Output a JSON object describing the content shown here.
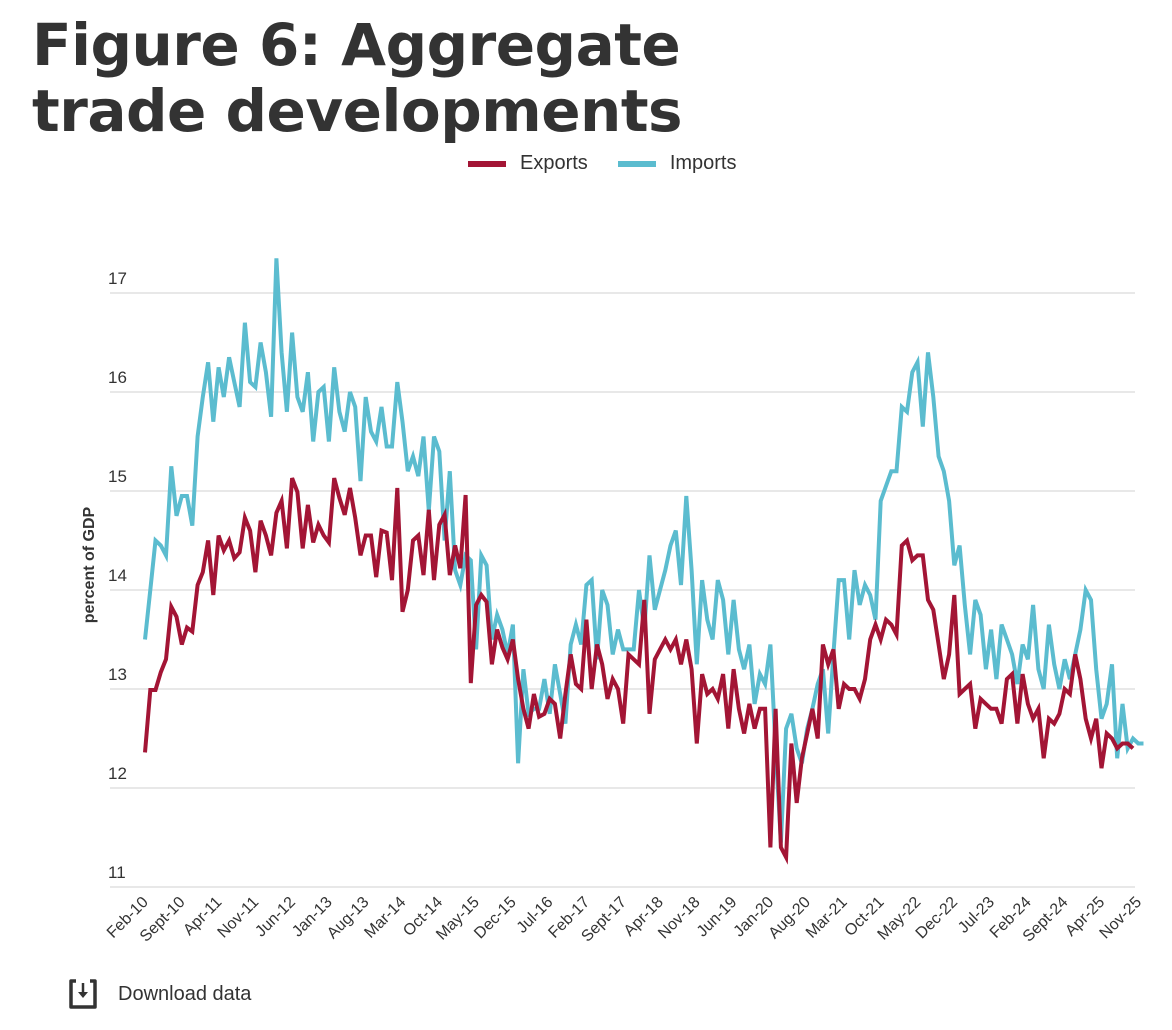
{
  "title": "Figure 6: Aggregate trade developments",
  "download": {
    "label": "Download data",
    "icon": "download-icon"
  },
  "colors": {
    "exports": "#a31535",
    "imports": "#5bbccf",
    "grid": "#e8e8e8",
    "text": "#333333"
  },
  "chart_data": {
    "type": "line",
    "title": "Figure 6: Aggregate trade developments",
    "xlabel": "",
    "ylabel": "percent of GDP",
    "ylim": [
      11,
      17
    ],
    "yticks": [
      11,
      12,
      13,
      14,
      15,
      16,
      17
    ],
    "grid": true,
    "legend_position": "top-center",
    "x_start": "Feb-10",
    "x_end": "Nov-25",
    "frequency": "monthly",
    "xtick_labels": [
      "Feb-10",
      "Sept-10",
      "Apr-11",
      "Nov-11",
      "Jun-12",
      "Jan-13",
      "Aug-13",
      "Mar-14",
      "Oct-14",
      "May-15",
      "Dec-15",
      "Jul-16",
      "Feb-17",
      "Sept-17",
      "Apr-18",
      "Nov-18",
      "Jun-19",
      "Jan-20",
      "Aug-20",
      "Mar-21",
      "Oct-21",
      "May-22",
      "Dec-22",
      "Jul-23",
      "Feb-24",
      "Sept-24",
      "Apr-25",
      "Nov-25"
    ],
    "xtick_step_months": 7,
    "series": [
      {
        "name": "Exports",
        "values": [
          12.36,
          12.99,
          12.99,
          13.17,
          13.3,
          13.83,
          13.73,
          13.45,
          13.62,
          13.58,
          14.05,
          14.18,
          14.5,
          13.95,
          14.55,
          14.4,
          14.5,
          14.32,
          14.38,
          14.73,
          14.6,
          14.18,
          14.7,
          14.55,
          14.35,
          14.78,
          14.9,
          14.42,
          15.13,
          14.99,
          14.42,
          14.86,
          14.48,
          14.66,
          14.55,
          14.48,
          15.13,
          14.93,
          14.76,
          15.03,
          14.73,
          14.35,
          14.55,
          14.55,
          14.13,
          14.6,
          14.58,
          14.1,
          15.03,
          13.78,
          14.0,
          14.5,
          14.55,
          14.15,
          14.81,
          14.1,
          14.66,
          14.76,
          14.15,
          14.45,
          14.22,
          14.96,
          13.06,
          13.85,
          13.95,
          13.88,
          13.25,
          13.6,
          13.42,
          13.3,
          13.5,
          13.1,
          12.8,
          12.6,
          12.95,
          12.72,
          12.75,
          12.9,
          12.85,
          12.5,
          12.95,
          13.35,
          13.05,
          13.0,
          13.7,
          13.0,
          13.45,
          13.25,
          12.9,
          13.1,
          13.0,
          12.65,
          13.35,
          13.3,
          13.25,
          13.9,
          12.75,
          13.3,
          13.4,
          13.5,
          13.4,
          13.5,
          13.25,
          13.5,
          13.2,
          12.45,
          13.15,
          12.95,
          13.0,
          12.9,
          13.15,
          12.6,
          13.2,
          12.8,
          12.55,
          12.85,
          12.6,
          12.8,
          12.8,
          11.4,
          12.8,
          11.4,
          11.3,
          12.45,
          11.85,
          12.3,
          12.55,
          12.8,
          12.5,
          13.45,
          13.25,
          13.4,
          12.8,
          13.05,
          13.0,
          13.0,
          12.9,
          13.1,
          13.5,
          13.65,
          13.5,
          13.7,
          13.65,
          13.55,
          14.45,
          14.5,
          14.3,
          14.35,
          14.35,
          13.9,
          13.8,
          13.45,
          13.1,
          13.35,
          13.95,
          12.95,
          13.0,
          13.05,
          12.6,
          12.9,
          12.85,
          12.8,
          12.8,
          12.65,
          13.1,
          13.15,
          12.65,
          13.15,
          12.85,
          12.7,
          12.8,
          12.3,
          12.7,
          12.65,
          12.75,
          13.0,
          12.95,
          13.35,
          13.1,
          12.7,
          12.5,
          12.7,
          12.2,
          12.55,
          12.5,
          12.4,
          12.45,
          12.45,
          12.4
        ]
      },
      {
        "name": "Imports",
        "values": [
          13.5,
          14.0,
          14.5,
          14.45,
          14.35,
          15.25,
          14.75,
          14.95,
          14.95,
          14.65,
          15.55,
          15.95,
          16.3,
          15.7,
          16.25,
          15.95,
          16.35,
          16.1,
          15.85,
          16.7,
          16.1,
          16.05,
          16.5,
          16.2,
          15.75,
          17.35,
          16.4,
          15.8,
          16.6,
          15.95,
          15.8,
          16.2,
          15.5,
          16.0,
          16.05,
          15.5,
          16.25,
          15.8,
          15.6,
          16.0,
          15.85,
          15.1,
          15.95,
          15.6,
          15.5,
          15.85,
          15.45,
          15.45,
          16.1,
          15.7,
          15.2,
          15.35,
          15.15,
          15.55,
          14.8,
          15.55,
          15.4,
          14.5,
          15.2,
          14.2,
          14.05,
          14.35,
          14.3,
          13.4,
          14.35,
          14.25,
          13.5,
          13.75,
          13.6,
          13.35,
          13.65,
          12.25,
          13.2,
          12.75,
          12.8,
          12.8,
          13.1,
          12.75,
          13.25,
          12.95,
          12.65,
          13.45,
          13.65,
          13.45,
          14.05,
          14.1,
          13.3,
          14.0,
          13.85,
          13.35,
          13.6,
          13.4,
          13.4,
          13.4,
          14.0,
          13.6,
          14.35,
          13.8,
          14.0,
          14.2,
          14.45,
          14.6,
          14.05,
          14.95,
          14.2,
          13.25,
          14.1,
          13.7,
          13.5,
          14.1,
          13.9,
          13.35,
          13.9,
          13.4,
          13.2,
          13.45,
          12.85,
          13.15,
          13.05,
          13.45,
          12.4,
          11.45,
          12.6,
          12.75,
          12.4,
          12.25,
          12.6,
          12.8,
          13.05,
          13.2,
          12.55,
          13.35,
          14.1,
          14.1,
          13.5,
          14.2,
          13.85,
          14.05,
          13.95,
          13.7,
          14.9,
          15.05,
          15.2,
          15.2,
          15.85,
          15.8,
          16.2,
          16.3,
          15.65,
          16.4,
          15.95,
          15.35,
          15.2,
          14.9,
          14.25,
          14.45,
          13.85,
          13.35,
          13.9,
          13.75,
          13.2,
          13.6,
          13.1,
          13.65,
          13.5,
          13.35,
          13.05,
          13.45,
          13.3,
          13.85,
          13.2,
          13.0,
          13.65,
          13.25,
          13.0,
          13.3,
          13.1,
          13.35,
          13.6,
          14.0,
          13.9,
          13.2,
          12.7,
          12.85,
          13.25,
          12.3,
          12.85,
          12.4,
          12.5,
          12.45,
          12.45
        ]
      }
    ]
  }
}
